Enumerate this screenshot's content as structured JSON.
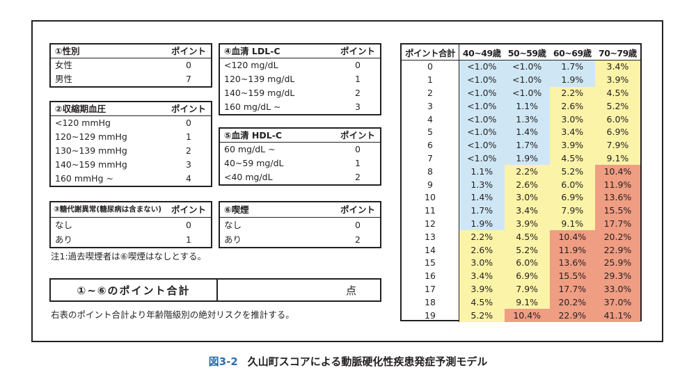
{
  "colors": {
    "low": "#cfe7f5",
    "mid": "#fbf3a7",
    "high": "#ef9d83",
    "caption_number": "#2b6cb0"
  },
  "factors": {
    "sex": {
      "title": "①性別",
      "point_header": "ポイント",
      "rows": [
        {
          "label": "女性",
          "point": "0"
        },
        {
          "label": "男性",
          "point": "7"
        }
      ]
    },
    "sbp": {
      "title": "②収縮期血圧",
      "point_header": "ポイント",
      "rows": [
        {
          "label": "<120 mmHg",
          "point": "0"
        },
        {
          "label": "120~129 mmHg",
          "point": "1"
        },
        {
          "label": "130~139 mmHg",
          "point": "2"
        },
        {
          "label": "140~159 mmHg",
          "point": "3"
        },
        {
          "label": "160 mmHg ~",
          "point": "4"
        }
      ]
    },
    "glucose": {
      "title": "③糖代謝異常(糖尿病は含まない)",
      "point_header": "ポイント",
      "rows": [
        {
          "label": "なし",
          "point": "0"
        },
        {
          "label": "あり",
          "point": "1"
        }
      ]
    },
    "ldl": {
      "title": "④血清 LDL-C",
      "point_header": "ポイント",
      "rows": [
        {
          "label": "<120 mg/dL",
          "point": "0"
        },
        {
          "label": "120~139 mg/dL",
          "point": "1"
        },
        {
          "label": "140~159 mg/dL",
          "point": "2"
        },
        {
          "label": "160 mg/dL ~",
          "point": "3"
        }
      ]
    },
    "hdl": {
      "title": "⑤血清 HDL-C",
      "point_header": "ポイント",
      "rows": [
        {
          "label": "60 mg/dL ~",
          "point": "0"
        },
        {
          "label": "40~59 mg/dL",
          "point": "1"
        },
        {
          "label": "<40 mg/dL",
          "point": "2"
        }
      ]
    },
    "smoking": {
      "title": "⑥喫煙",
      "point_header": "ポイント",
      "rows": [
        {
          "label": "なし",
          "point": "0"
        },
        {
          "label": "あり",
          "point": "2"
        }
      ]
    }
  },
  "note": "注1:過去喫煙者は⑥喫煙はなしとする。",
  "total": {
    "label": "①~⑥のポイント合計",
    "unit": "点"
  },
  "footnote": "右表のポイント合計より年齢階級別の絶対リスクを推計する。",
  "risk_table": {
    "headers": [
      "ポイント合計",
      "40~49歳",
      "50~59歳",
      "60~69歳",
      "70~79歳"
    ],
    "rows": [
      {
        "point": "0",
        "values": [
          "<1.0%",
          "<1.0%",
          "1.7%",
          "3.4%"
        ],
        "levels": [
          "low",
          "low",
          "low",
          "mid"
        ]
      },
      {
        "point": "1",
        "values": [
          "<1.0%",
          "<1.0%",
          "1.9%",
          "3.9%"
        ],
        "levels": [
          "low",
          "low",
          "low",
          "mid"
        ]
      },
      {
        "point": "2",
        "values": [
          "<1.0%",
          "<1.0%",
          "2.2%",
          "4.5%"
        ],
        "levels": [
          "low",
          "low",
          "mid",
          "mid"
        ]
      },
      {
        "point": "3",
        "values": [
          "<1.0%",
          "1.1%",
          "2.6%",
          "5.2%"
        ],
        "levels": [
          "low",
          "low",
          "mid",
          "mid"
        ]
      },
      {
        "point": "4",
        "values": [
          "<1.0%",
          "1.3%",
          "3.0%",
          "6.0%"
        ],
        "levels": [
          "low",
          "low",
          "mid",
          "mid"
        ]
      },
      {
        "point": "5",
        "values": [
          "<1.0%",
          "1.4%",
          "3.4%",
          "6.9%"
        ],
        "levels": [
          "low",
          "low",
          "mid",
          "mid"
        ]
      },
      {
        "point": "6",
        "values": [
          "<1.0%",
          "1.7%",
          "3.9%",
          "7.9%"
        ],
        "levels": [
          "low",
          "low",
          "mid",
          "mid"
        ]
      },
      {
        "point": "7",
        "values": [
          "<1.0%",
          "1.9%",
          "4.5%",
          "9.1%"
        ],
        "levels": [
          "low",
          "low",
          "mid",
          "mid"
        ]
      },
      {
        "point": "8",
        "values": [
          "1.1%",
          "2.2%",
          "5.2%",
          "10.4%"
        ],
        "levels": [
          "low",
          "mid",
          "mid",
          "high"
        ]
      },
      {
        "point": "9",
        "values": [
          "1.3%",
          "2.6%",
          "6.0%",
          "11.9%"
        ],
        "levels": [
          "low",
          "mid",
          "mid",
          "high"
        ]
      },
      {
        "point": "10",
        "values": [
          "1.4%",
          "3.0%",
          "6.9%",
          "13.6%"
        ],
        "levels": [
          "low",
          "mid",
          "mid",
          "high"
        ]
      },
      {
        "point": "11",
        "values": [
          "1.7%",
          "3.4%",
          "7.9%",
          "15.5%"
        ],
        "levels": [
          "low",
          "mid",
          "mid",
          "high"
        ]
      },
      {
        "point": "12",
        "values": [
          "1.9%",
          "3.9%",
          "9.1%",
          "17.7%"
        ],
        "levels": [
          "low",
          "mid",
          "mid",
          "high"
        ]
      },
      {
        "point": "13",
        "values": [
          "2.2%",
          "4.5%",
          "10.4%",
          "20.2%"
        ],
        "levels": [
          "mid",
          "mid",
          "high",
          "high"
        ]
      },
      {
        "point": "14",
        "values": [
          "2.6%",
          "5.2%",
          "11.9%",
          "22.9%"
        ],
        "levels": [
          "mid",
          "mid",
          "high",
          "high"
        ]
      },
      {
        "point": "15",
        "values": [
          "3.0%",
          "6.0%",
          "13.6%",
          "25.9%"
        ],
        "levels": [
          "mid",
          "mid",
          "high",
          "high"
        ]
      },
      {
        "point": "16",
        "values": [
          "3.4%",
          "6.9%",
          "15.5%",
          "29.3%"
        ],
        "levels": [
          "mid",
          "mid",
          "high",
          "high"
        ]
      },
      {
        "point": "17",
        "values": [
          "3.9%",
          "7.9%",
          "17.7%",
          "33.0%"
        ],
        "levels": [
          "mid",
          "mid",
          "high",
          "high"
        ]
      },
      {
        "point": "18",
        "values": [
          "4.5%",
          "9.1%",
          "20.2%",
          "37.0%"
        ],
        "levels": [
          "mid",
          "mid",
          "high",
          "high"
        ]
      },
      {
        "point": "19",
        "values": [
          "5.2%",
          "10.4%",
          "22.9%",
          "41.1%"
        ],
        "levels": [
          "mid",
          "high",
          "high",
          "high"
        ]
      }
    ]
  },
  "caption": {
    "number": "図3-2",
    "text": "久山町スコアによる動脈硬化性疾患発症予測モデル"
  }
}
